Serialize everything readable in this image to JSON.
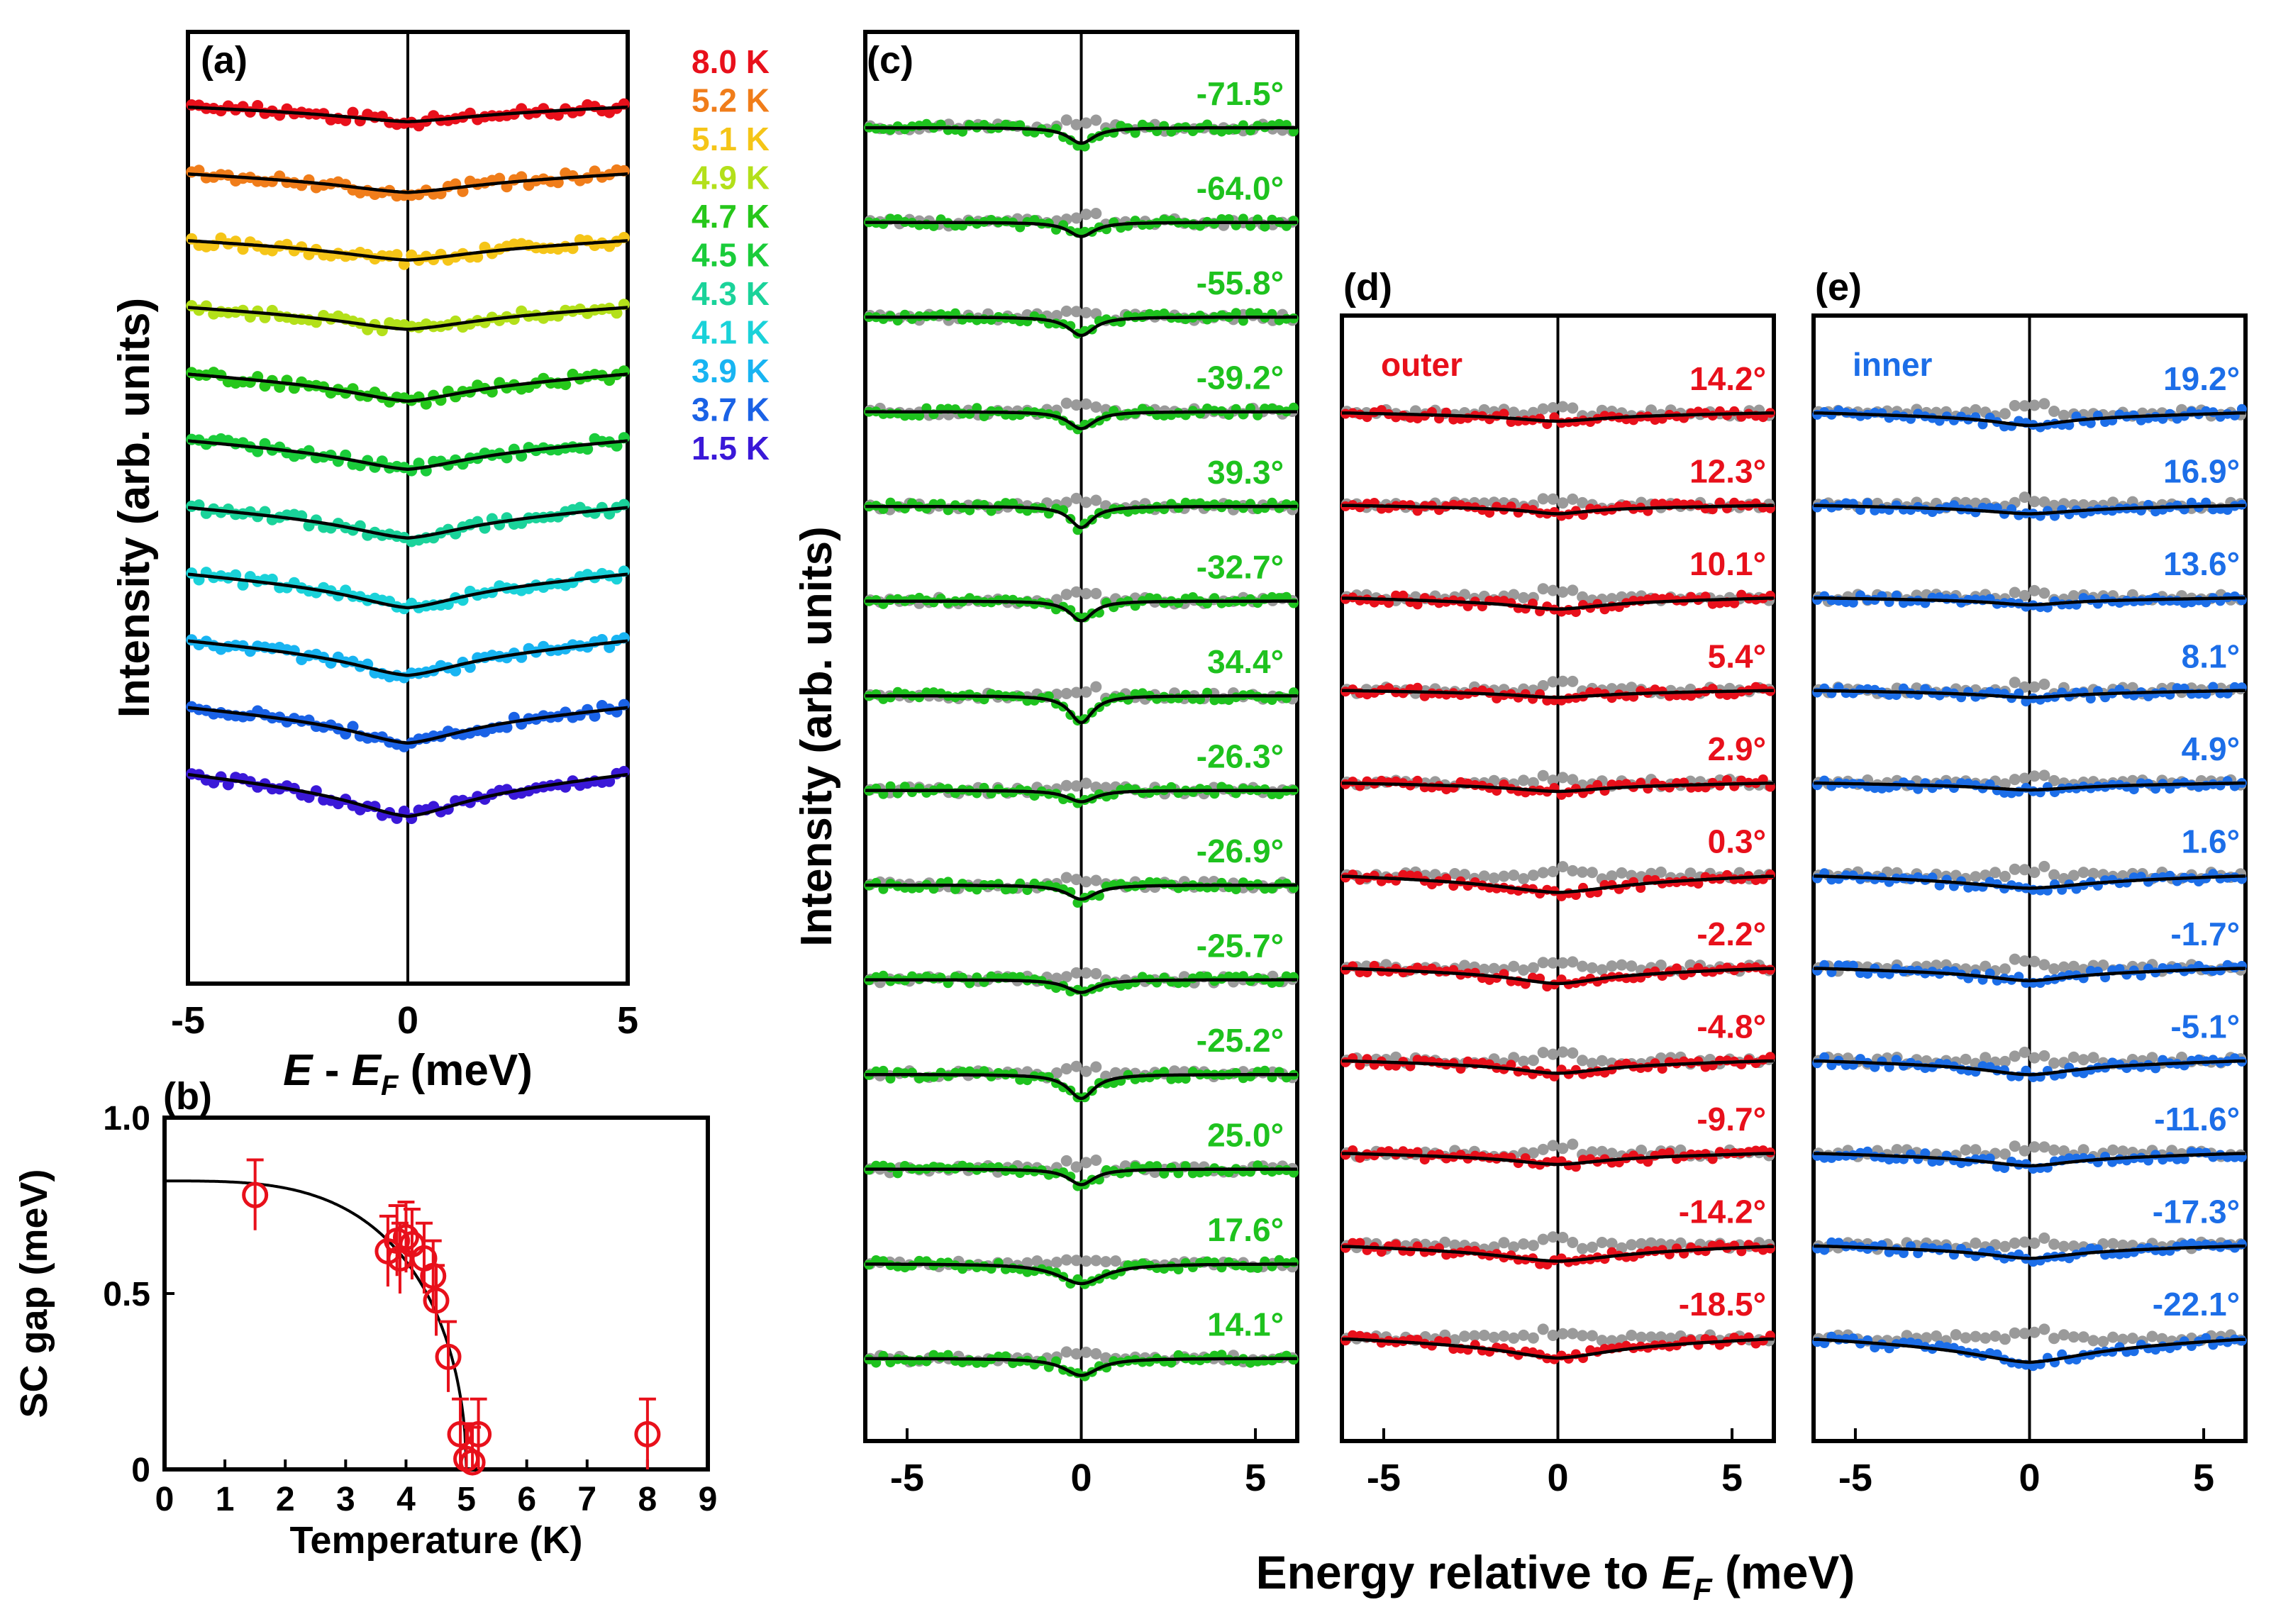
{
  "chart_data": [
    {
      "id": "a",
      "panel_label": "(a)",
      "type": "line",
      "description_free": true,
      "xlabel_parts": [
        "E",
        " - ",
        "E",
        "F",
        " (meV)"
      ],
      "ylabel": "Intensity (arb. units)",
      "xlim": [
        -5,
        5
      ],
      "xticks": [
        "-5",
        "0",
        "5"
      ],
      "n_curves": 11,
      "series": [
        {
          "name": "8.0 K",
          "label": "8.0 K",
          "color": "#e8101b",
          "depth": 0.3,
          "width": 1.8
        },
        {
          "name": "5.2 K",
          "label": "5.2 K",
          "color": "#f07d1a",
          "depth": 0.38,
          "width": 1.8
        },
        {
          "name": "5.1 K",
          "label": "5.1 K",
          "color": "#f5c518",
          "depth": 0.4,
          "width": 1.8
        },
        {
          "name": "4.9 K",
          "label": "4.9 K",
          "color": "#b3e01a",
          "depth": 0.45,
          "width": 1.8
        },
        {
          "name": "4.7 K",
          "label": "4.7 K",
          "color": "#26c71a",
          "depth": 0.55,
          "width": 1.6
        },
        {
          "name": "4.5 K",
          "label": "4.5 K",
          "color": "#1acc3a",
          "depth": 0.58,
          "width": 1.6
        },
        {
          "name": "4.3 K",
          "label": "4.3 K",
          "color": "#1ad39a",
          "depth": 0.62,
          "width": 1.6
        },
        {
          "name": "4.1 K",
          "label": "4.1 K",
          "color": "#1ad2d9",
          "depth": 0.68,
          "width": 1.5
        },
        {
          "name": "3.9 K",
          "label": "3.9 K",
          "color": "#18b4f2",
          "depth": 0.7,
          "width": 1.5
        },
        {
          "name": "3.7 K",
          "label": "3.7 K",
          "color": "#1a62e6",
          "depth": 0.72,
          "width": 1.5
        },
        {
          "name": "1.5 K",
          "label": "1.5 K",
          "color": "#3a18d8",
          "depth": 0.85,
          "width": 1.5
        }
      ]
    },
    {
      "id": "b",
      "panel_label": "(b)",
      "type": "scatter",
      "xlabel": "Temperature (K)",
      "ylabel": "SC gap (meV)",
      "xlim": [
        0,
        9
      ],
      "ylim": [
        0,
        1.0
      ],
      "xticks": [
        "0",
        "1",
        "2",
        "3",
        "4",
        "5",
        "6",
        "7",
        "8",
        "9"
      ],
      "yticks": [
        "0",
        "0.5",
        "1.0"
      ],
      "points": {
        "x": [
          1.5,
          3.7,
          3.85,
          3.9,
          4.0,
          4.1,
          4.3,
          4.45,
          4.5,
          4.7,
          4.9,
          5.0,
          5.1,
          5.2,
          8.0
        ],
        "y": [
          0.78,
          0.62,
          0.65,
          0.6,
          0.66,
          0.64,
          0.6,
          0.55,
          0.48,
          0.32,
          0.1,
          0.03,
          0.02,
          0.1,
          0.1
        ],
        "err": [
          0.1,
          0.1,
          0.1,
          0.1,
          0.1,
          0.1,
          0.1,
          0.1,
          0.1,
          0.1,
          0.1,
          0.1,
          0.1,
          0.1,
          0.1
        ]
      },
      "fit": {
        "delta0": 0.82,
        "tc": 5.0
      },
      "marker_color": "#e8101b"
    },
    {
      "id": "c",
      "panel_label": "(c)",
      "type": "line",
      "ylabel": "Intensity (arb. units)",
      "xlim": [
        -6.2,
        6.2
      ],
      "xticks": [
        "-5",
        "0",
        "5"
      ],
      "curve_color": "#1ec21e",
      "label_color": "#1ec21e",
      "series": [
        {
          "name": "-71.5°",
          "label": "-71.5°",
          "depth": 0.55,
          "width": 0.45
        },
        {
          "name": "-64.0°",
          "label": "-64.0°",
          "depth": 0.5,
          "width": 0.45
        },
        {
          "name": "-55.8°",
          "label": "-55.8°",
          "depth": 0.65,
          "width": 0.45
        },
        {
          "name": "-39.2°",
          "label": "-39.2°",
          "depth": 0.6,
          "width": 0.45
        },
        {
          "name": "39.3°",
          "label": "39.3°",
          "depth": 0.75,
          "width": 0.4
        },
        {
          "name": "-32.7°",
          "label": "-32.7°",
          "depth": 0.7,
          "width": 0.4
        },
        {
          "name": "34.4°",
          "label": "34.4°",
          "depth": 0.95,
          "width": 0.4
        },
        {
          "name": "-26.3°",
          "label": "-26.3°",
          "depth": 0.4,
          "width": 0.5
        },
        {
          "name": "-26.9°",
          "label": "-26.9°",
          "depth": 0.5,
          "width": 0.5
        },
        {
          "name": "-25.7°",
          "label": "-25.7°",
          "depth": 0.45,
          "width": 0.5
        },
        {
          "name": "-25.2°",
          "label": "-25.2°",
          "depth": 0.85,
          "width": 0.45
        },
        {
          "name": "25.0°",
          "label": "25.0°",
          "depth": 0.55,
          "width": 0.45
        },
        {
          "name": "17.6°",
          "label": "17.6°",
          "depth": 0.7,
          "width": 0.8
        },
        {
          "name": "14.1°",
          "label": "14.1°",
          "depth": 0.6,
          "width": 0.6
        }
      ]
    },
    {
      "id": "d",
      "panel_label": "(d)",
      "type": "line",
      "xlim": [
        -6.2,
        6.2
      ],
      "xticks": [
        "-5",
        "0",
        "5"
      ],
      "band": "outer",
      "curve_color": "#e8101b",
      "label_color": "#e8101b",
      "series": [
        {
          "name": "14.2°",
          "label": "14.2°",
          "depth": 0.3,
          "width": 1.5
        },
        {
          "name": "12.3°",
          "label": "12.3°",
          "depth": 0.3,
          "width": 1.0
        },
        {
          "name": "10.1°",
          "label": "10.1°",
          "depth": 0.4,
          "width": 1.5
        },
        {
          "name": "5.4°",
          "label": "5.4°",
          "depth": 0.25,
          "width": 1.5
        },
        {
          "name": "2.9°",
          "label": "2.9°",
          "depth": 0.3,
          "width": 1.5
        },
        {
          "name": "0.3°",
          "label": "0.3°",
          "depth": 0.6,
          "width": 2.0
        },
        {
          "name": "-2.2°",
          "label": "-2.2°",
          "depth": 0.55,
          "width": 1.5
        },
        {
          "name": "-4.8°",
          "label": "-4.8°",
          "depth": 0.45,
          "width": 1.5
        },
        {
          "name": "-9.7°",
          "label": "-9.7°",
          "depth": 0.4,
          "width": 1.5
        },
        {
          "name": "-14.2°",
          "label": "-14.2°",
          "depth": 0.55,
          "width": 2.0
        },
        {
          "name": "-18.5°",
          "label": "-18.5°",
          "depth": 0.7,
          "width": 1.8
        }
      ]
    },
    {
      "id": "e",
      "panel_label": "(e)",
      "type": "line",
      "xlim": [
        -6.2,
        6.2
      ],
      "xticks": [
        "-5",
        "0",
        "5"
      ],
      "band": "inner",
      "curve_color": "#1c6ee8",
      "label_color": "#1c6ee8",
      "series": [
        {
          "name": "19.2°",
          "label": "19.2°",
          "depth": 0.45,
          "width": 1.2
        },
        {
          "name": "16.9°",
          "label": "16.9°",
          "depth": 0.3,
          "width": 1.5
        },
        {
          "name": "13.6°",
          "label": "13.6°",
          "depth": 0.25,
          "width": 1.2
        },
        {
          "name": "8.1°",
          "label": "8.1°",
          "depth": 0.25,
          "width": 1.5
        },
        {
          "name": "4.9°",
          "label": "4.9°",
          "depth": 0.25,
          "width": 1.5
        },
        {
          "name": "1.6°",
          "label": "1.6°",
          "depth": 0.45,
          "width": 2.0
        },
        {
          "name": "-1.7°",
          "label": "-1.7°",
          "depth": 0.45,
          "width": 1.5
        },
        {
          "name": "-5.1°",
          "label": "-5.1°",
          "depth": 0.5,
          "width": 1.5
        },
        {
          "name": "-11.6°",
          "label": "-11.6°",
          "depth": 0.45,
          "width": 1.5
        },
        {
          "name": "-17.3°",
          "label": "-17.3°",
          "depth": 0.45,
          "width": 1.5
        },
        {
          "name": "-22.1°",
          "label": "-22.1°",
          "depth": 0.85,
          "width": 2.0
        }
      ]
    }
  ],
  "shared": {
    "xlabel_cde_prefix": "Energy relative to ",
    "xlabel_cde_E": "E",
    "xlabel_cde_sub": "F",
    "xlabel_cde_suffix": " (meV)",
    "reference_color": "#9a9a9a",
    "fit_color": "#000000"
  }
}
